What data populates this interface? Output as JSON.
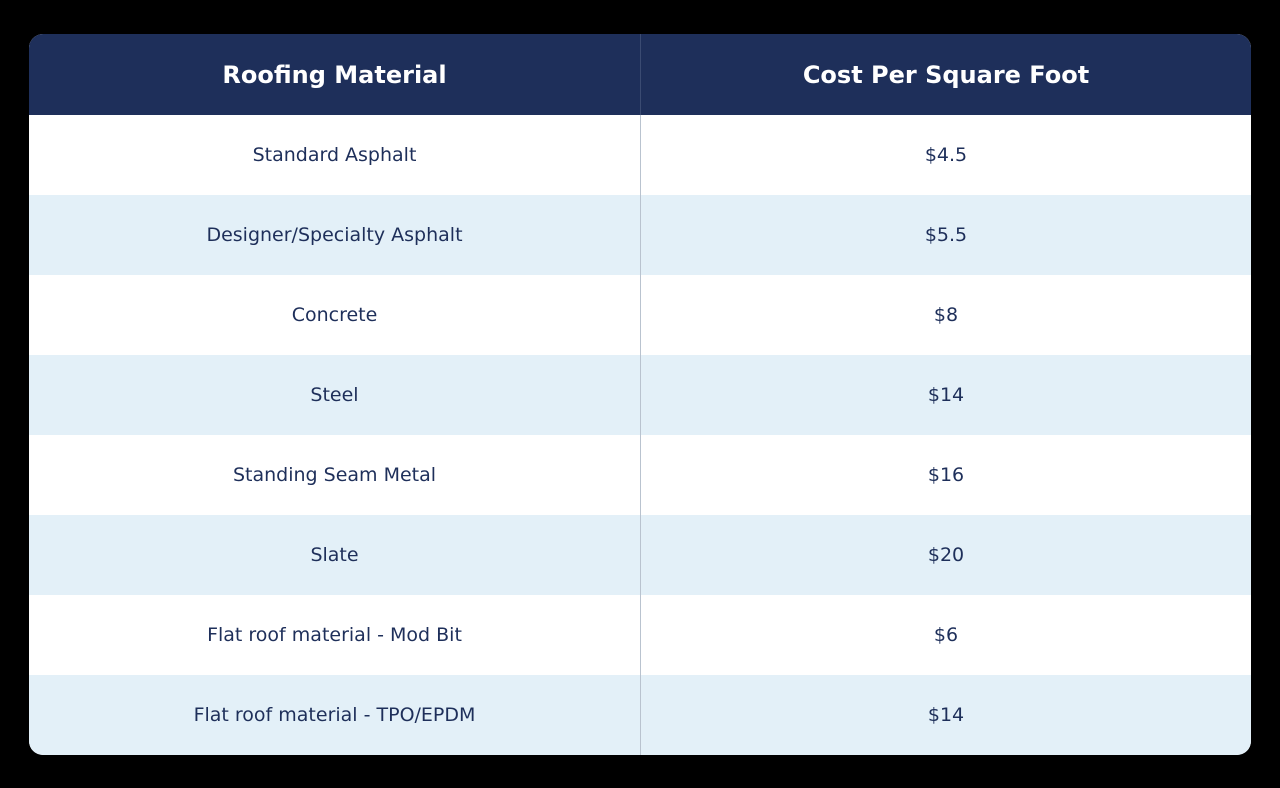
{
  "table": {
    "headers": [
      "Roofing Material",
      "Cost Per Square Foot"
    ],
    "rows": [
      [
        "Standard Asphalt",
        "$4.5"
      ],
      [
        "Designer/Specialty Asphalt",
        "$5.5"
      ],
      [
        "Concrete",
        "$8"
      ],
      [
        "Steel",
        "$14"
      ],
      [
        "Standing Seam Metal",
        "$16"
      ],
      [
        "Slate",
        "$20"
      ],
      [
        "Flat roof material - Mod Bit",
        "$6"
      ],
      [
        "Flat roof material - TPO/EPDM",
        "$14"
      ]
    ]
  }
}
